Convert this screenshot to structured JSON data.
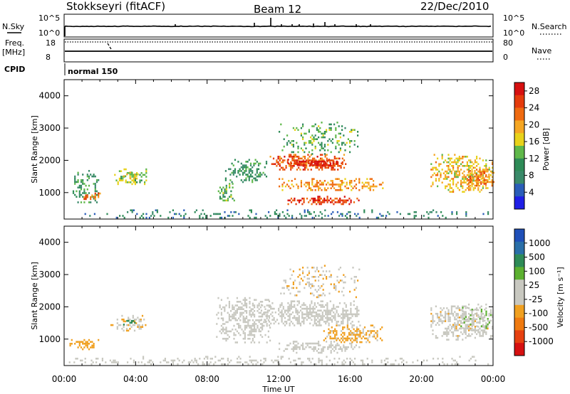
{
  "header": {
    "station": "Stokkseyri (fitACF)",
    "beam": "Beam 12",
    "date": "22/Dec/2010"
  },
  "strips": {
    "nsky_label": "N.Sky",
    "nsky_ticks": [
      "10^5",
      "10^0"
    ],
    "nsearch_label": "N.Search",
    "nsearch_ticks": [
      "10^5",
      "10^0"
    ],
    "freq_label": "Freq.",
    "freq_unit": "[MHz]",
    "freq_ticks": [
      "18",
      "8"
    ],
    "nave_label": "Nave",
    "nave_ticks": [
      "80",
      "0"
    ],
    "cpid_label": "CPID",
    "cpid_value": "normal 150"
  },
  "colors": {
    "power": [
      "#1f1fe6",
      "#2a5db8",
      "#3a8a6a",
      "#2e8b57",
      "#5fb84a",
      "#e8d21a",
      "#f5a623",
      "#ef6a10",
      "#e53b0c",
      "#d61010"
    ],
    "velocity": [
      "#1f4fb8",
      "#2a6fa8",
      "#2e8b57",
      "#5cb030",
      "#c8c8c0",
      "#c8c8c0",
      "#f0a020",
      "#ef7a10",
      "#e64010",
      "#d61010"
    ]
  },
  "chart_data": [
    {
      "type": "heatmap",
      "name": "power",
      "ylabel": "Slant Range [km]",
      "xlabel": "Time UT",
      "x_ticks": [
        "00:00",
        "04:00",
        "08:00",
        "12:00",
        "16:00",
        "20:00",
        "00:00"
      ],
      "xlim": [
        0,
        24
      ],
      "ylim": [
        180,
        4500
      ],
      "y_ticks": [
        1000,
        2000,
        3000,
        4000
      ],
      "colorbar": {
        "label": "Power [dB]",
        "ticks": [
          "4",
          "8",
          "12",
          "16",
          "20",
          "24",
          "28"
        ],
        "range": [
          0,
          30
        ]
      },
      "regions": [
        {
          "t": [
            0.3,
            2.0
          ],
          "r": [
            700,
            1700
          ],
          "v": 10,
          "d": 0.45
        },
        {
          "t": [
            1.0,
            2.0
          ],
          "r": [
            800,
            1000
          ],
          "v": 22,
          "d": 0.6
        },
        {
          "t": [
            2.8,
            4.6
          ],
          "r": [
            1250,
            1750
          ],
          "v": 14,
          "d": 0.55
        },
        {
          "t": [
            3.3,
            4.2
          ],
          "r": [
            1450,
            1650
          ],
          "v": 18,
          "d": 0.5
        },
        {
          "t": [
            8.6,
            9.5
          ],
          "r": [
            750,
            1300
          ],
          "v": 12,
          "d": 0.55
        },
        {
          "t": [
            9.0,
            11.5
          ],
          "r": [
            1300,
            2100
          ],
          "v": 10,
          "d": 0.45
        },
        {
          "t": [
            11.5,
            15.8
          ],
          "r": [
            1700,
            2200
          ],
          "v": 24,
          "d": 0.7
        },
        {
          "t": [
            12.5,
            15.5
          ],
          "r": [
            1850,
            2050
          ],
          "v": 28,
          "d": 0.75
        },
        {
          "t": [
            12.0,
            17.8
          ],
          "r": [
            1050,
            1450
          ],
          "v": 20,
          "d": 0.6
        },
        {
          "t": [
            12.5,
            16.5
          ],
          "r": [
            650,
            900
          ],
          "v": 26,
          "d": 0.7
        },
        {
          "t": [
            12.0,
            16.5
          ],
          "r": [
            2200,
            3200
          ],
          "v": 12,
          "d": 0.25
        },
        {
          "t": [
            20.5,
            24.0
          ],
          "r": [
            1000,
            2200
          ],
          "v": 18,
          "d": 0.55
        },
        {
          "t": [
            22.5,
            24.0
          ],
          "r": [
            1200,
            1700
          ],
          "v": 22,
          "d": 0.6
        },
        {
          "t": [
            0.0,
            24.0
          ],
          "r": [
            200,
            480
          ],
          "v": 8,
          "d": 0.22
        }
      ]
    },
    {
      "type": "heatmap",
      "name": "velocity",
      "ylabel": "Slant Range [km]",
      "xlabel": "Time UT",
      "x_ticks": [
        "00:00",
        "04:00",
        "08:00",
        "12:00",
        "16:00",
        "20:00",
        "00:00"
      ],
      "xlim": [
        0,
        24
      ],
      "ylim": [
        180,
        4500
      ],
      "y_ticks": [
        1000,
        2000,
        3000,
        4000
      ],
      "colorbar": {
        "label": "Velocity [m s⁻¹]",
        "ticks": [
          "1000",
          "500",
          "100",
          "25",
          "-25",
          "-100",
          "-500",
          "-1000"
        ],
        "range": [
          -1200,
          1200
        ]
      },
      "regions": [
        {
          "t": [
            0.3,
            2.0
          ],
          "r": [
            700,
            1000
          ],
          "v": -400,
          "d": 0.6
        },
        {
          "t": [
            2.5,
            4.6
          ],
          "r": [
            1250,
            1750
          ],
          "v": -200,
          "d": 0.55
        },
        {
          "t": [
            3.3,
            4.0
          ],
          "r": [
            1450,
            1650
          ],
          "v": 600,
          "d": 0.4
        },
        {
          "t": [
            8.5,
            11.5
          ],
          "r": [
            900,
            2300
          ],
          "v": 0,
          "d": 0.55
        },
        {
          "t": [
            11.0,
            16.5
          ],
          "r": [
            1400,
            2200
          ],
          "v": 0,
          "d": 0.65
        },
        {
          "t": [
            12.0,
            16.5
          ],
          "r": [
            600,
            950
          ],
          "v": 0,
          "d": 0.6
        },
        {
          "t": [
            14.5,
            17.8
          ],
          "r": [
            900,
            1450
          ],
          "v": -300,
          "d": 0.55
        },
        {
          "t": [
            12.0,
            16.5
          ],
          "r": [
            2300,
            3300
          ],
          "v": -200,
          "d": 0.25
        },
        {
          "t": [
            20.5,
            24.0
          ],
          "r": [
            1000,
            2100
          ],
          "v": -150,
          "d": 0.6
        },
        {
          "t": [
            22.0,
            24.0
          ],
          "r": [
            1300,
            2000
          ],
          "v": 200,
          "d": 0.45
        },
        {
          "t": [
            0.0,
            24.0
          ],
          "r": [
            200,
            480
          ],
          "v": 60,
          "d": 0.25
        }
      ]
    }
  ]
}
